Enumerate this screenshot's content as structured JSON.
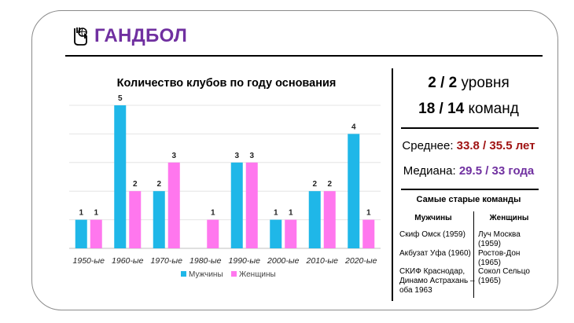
{
  "header": {
    "title": "ГАНДБОЛ",
    "logo_icon": "handball-icon"
  },
  "chart_data": {
    "type": "bar",
    "title": "Количество клубов по году основания",
    "categories": [
      "1950-ые",
      "1960-ые",
      "1970-ые",
      "1980-ые",
      "1990-ые",
      "2000-ые",
      "2010-ые",
      "2020-ые"
    ],
    "series": [
      {
        "name": "Мужчины",
        "color": "#1fb7e8",
        "values": [
          1,
          5,
          2,
          0,
          3,
          1,
          2,
          4
        ]
      },
      {
        "name": "Женщины",
        "color": "#ff77ee",
        "values": [
          1,
          2,
          3,
          1,
          3,
          1,
          2,
          1
        ]
      }
    ],
    "ylim": [
      0,
      5
    ],
    "legend": "bottom",
    "grid": true
  },
  "stats": {
    "levels": {
      "a": "2 / 2",
      "b": "уровня"
    },
    "teams": {
      "a": "18 / 14",
      "b": "команд"
    },
    "mean": {
      "label": "Среднее:",
      "value": "33.8 / 35.5 лет"
    },
    "median": {
      "label": "Медиана:",
      "value": "29.5 / 33 года"
    }
  },
  "oldest": {
    "title": "Самые старые команды",
    "men_header": "Мужчины",
    "women_header": "Женщины",
    "men": [
      "Скиф Омск (1959)",
      "Акбузат Уфа (1960)",
      "СКИФ Краснодар, Динамо Астрахань – оба 1963"
    ],
    "women": [
      "Луч Москва (1959)",
      "Ростов-Дон (1965)",
      "Сокол Сельцо (1965)"
    ]
  }
}
